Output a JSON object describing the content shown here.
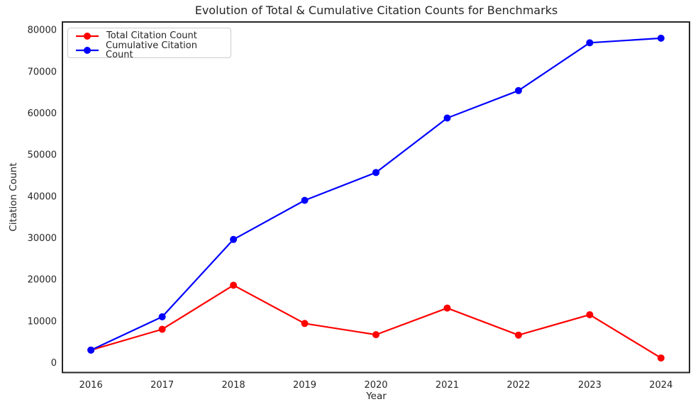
{
  "title": "Evolution of Total & Cumulative Citation Counts for Benchmarks",
  "chart_data": {
    "type": "line",
    "title": "Evolution of Total & Cumulative Citation Counts for Benchmarks",
    "xlabel": "Year",
    "ylabel": "Citation Count",
    "x": [
      2016,
      2017,
      2018,
      2019,
      2020,
      2021,
      2022,
      2023,
      2024
    ],
    "series": [
      {
        "name": "Total Citation Count",
        "color": "#ff0000",
        "marker": "circle",
        "values": [
          3000,
          8000,
          18600,
          9400,
          6700,
          13100,
          6600,
          11500,
          1100
        ]
      },
      {
        "name": "Cumulative Citation Count",
        "color": "#0000ff",
        "marker": "circle",
        "values": [
          3000,
          11000,
          29600,
          39000,
          45700,
          58800,
          65400,
          76900,
          78000
        ]
      }
    ],
    "yticks": [
      0,
      10000,
      20000,
      30000,
      40000,
      50000,
      60000,
      70000,
      80000
    ],
    "xticks": [
      2016,
      2017,
      2018,
      2019,
      2020,
      2021,
      2022,
      2023,
      2024
    ],
    "xlim": [
      2015.6,
      2024.4
    ],
    "ylim": [
      -2400,
      81900
    ],
    "grid": false,
    "legend_position": "upper left",
    "frame_color": "#262626",
    "text_color": "#262626"
  }
}
